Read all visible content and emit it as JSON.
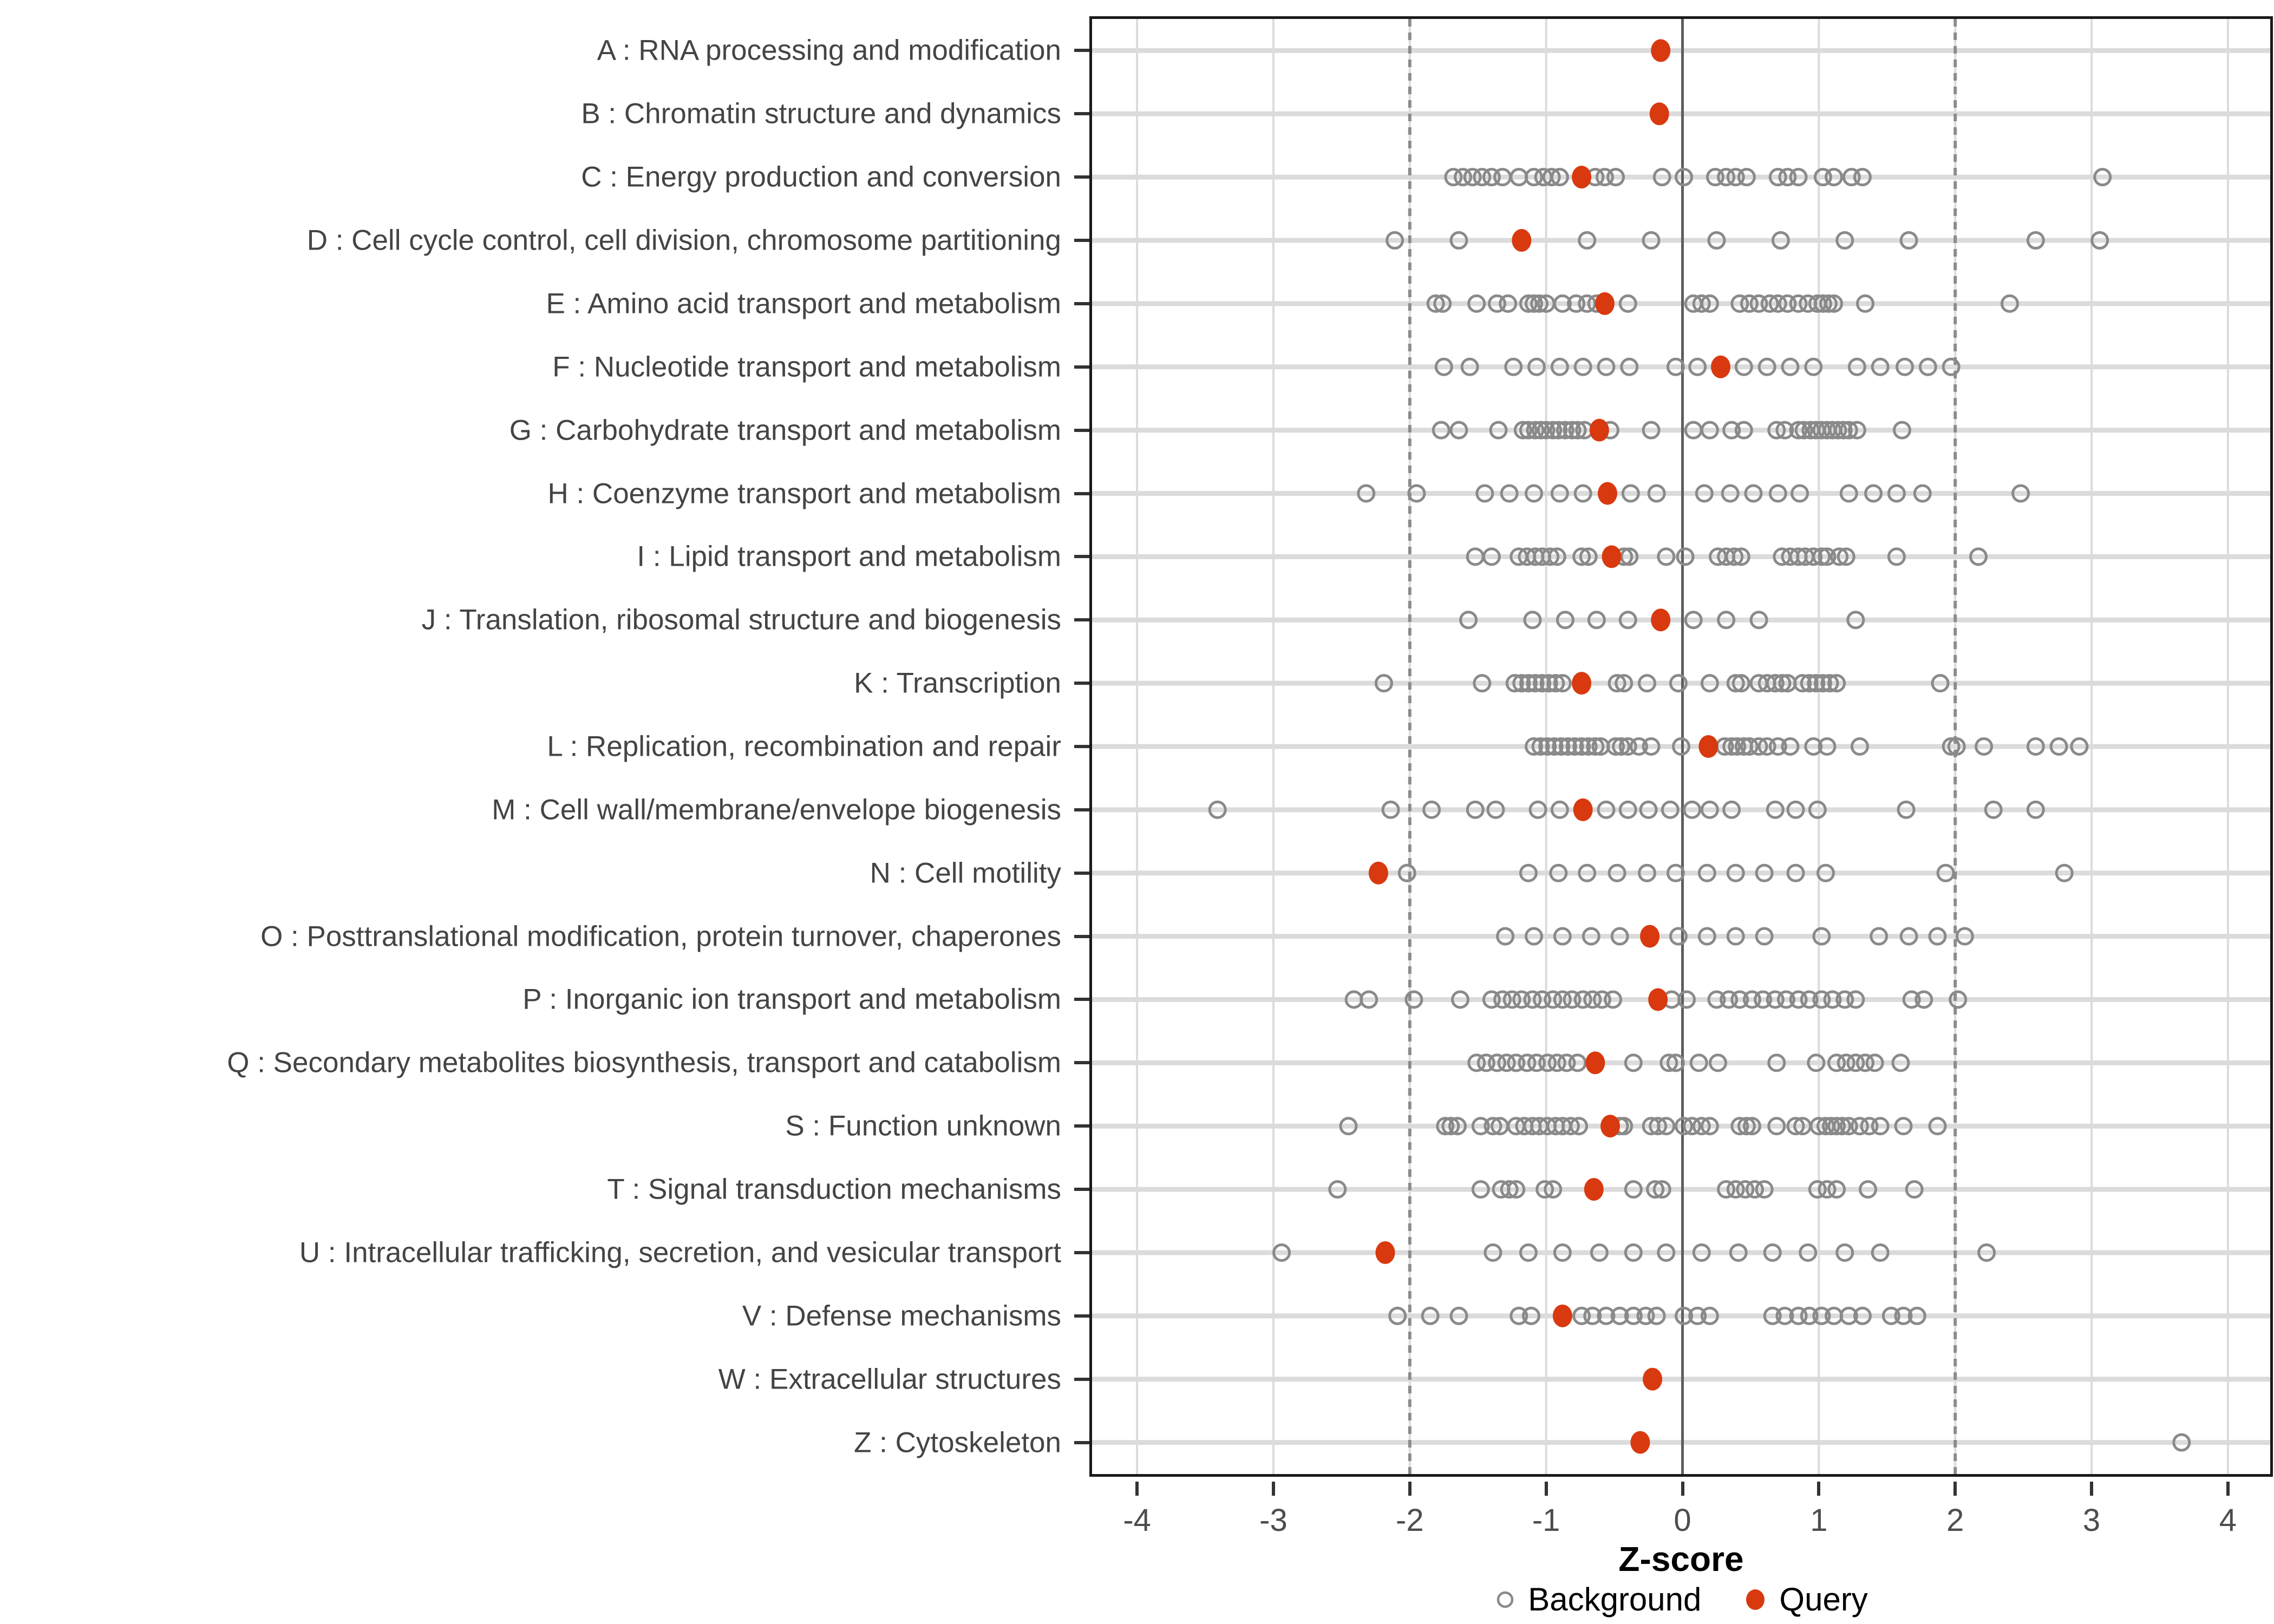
{
  "figure": {
    "background_color": "#FFFFFF",
    "x_axis": {
      "label": "Z-score",
      "ticks": [
        "-4",
        "-3",
        "-2",
        "-1",
        "0",
        "1",
        "2",
        "3",
        "4"
      ],
      "tick_values": [
        -4,
        -3,
        -2,
        -1,
        0,
        1,
        2,
        3,
        4
      ],
      "range": [
        -4.33,
        4.31
      ]
    },
    "reference_lines": {
      "zero_solid": 0,
      "dashed": [
        -2,
        2
      ]
    },
    "legend": {
      "items": [
        {
          "label": "Background",
          "marker": "open-circle",
          "color": "#8A8A8A"
        },
        {
          "label": "Query",
          "marker": "filled-circle",
          "color": "#D8390F"
        }
      ]
    },
    "colors": {
      "query": "#D8390F",
      "background_stroke": "#8A8A8A",
      "grid": "#DBDBDB",
      "dashed_line": "#8C8C8C",
      "zero_line": "#5E5E5E",
      "panel_border": "#1A1A1A",
      "category_text": "#444444",
      "tick_text": "#4D4D4D"
    }
  },
  "chart_data": {
    "type": "scatter",
    "orientation": "horizontal-strip",
    "title": "",
    "xlabel": "Z-score",
    "xlim": [
      -4.33,
      4.31
    ],
    "x_ticks": [
      -4,
      -3,
      -2,
      -1,
      0,
      1,
      2,
      3,
      4
    ],
    "grid": "major-only",
    "legend_position": "bottom-center",
    "series_names": [
      "Background",
      "Query"
    ],
    "rows": [
      {
        "code": "A",
        "label": "A : RNA processing and modification",
        "query": -0.16,
        "background": []
      },
      {
        "code": "B",
        "label": "B : Chromatin structure and dynamics",
        "query": -0.17,
        "background": []
      },
      {
        "code": "C",
        "label": "C : Energy production and conversion",
        "query": -0.74,
        "background": [
          -1.68,
          -1.61,
          -1.54,
          -1.47,
          -1.4,
          -1.32,
          -1.2,
          -1.09,
          -1.02,
          -0.96,
          -0.9,
          -0.64,
          -0.57,
          -0.49,
          -0.15,
          0.01,
          0.24,
          0.32,
          0.39,
          0.47,
          0.7,
          0.77,
          0.85,
          1.03,
          1.11,
          1.24,
          1.32,
          3.08
        ]
      },
      {
        "code": "D",
        "label": "D : Cell cycle control, cell division, chromosome partitioning",
        "query": -1.18,
        "background": [
          -2.11,
          -1.64,
          -0.7,
          -0.23,
          0.25,
          0.72,
          1.19,
          1.66,
          2.59,
          3.06
        ]
      },
      {
        "code": "E",
        "label": "E : Amino acid transport and metabolism",
        "query": -0.57,
        "background": [
          -1.81,
          -1.76,
          -1.51,
          -1.36,
          -1.28,
          -1.13,
          -1.09,
          -1.05,
          -1.0,
          -0.88,
          -0.78,
          -0.7,
          -0.63,
          -0.4,
          0.08,
          0.14,
          0.2,
          0.42,
          0.49,
          0.56,
          0.64,
          0.7,
          0.77,
          0.85,
          0.92,
          0.99,
          1.03,
          1.07,
          1.11,
          1.34,
          2.4
        ]
      },
      {
        "code": "F",
        "label": "F : Nucleotide transport and metabolism",
        "query": 0.28,
        "background": [
          -1.75,
          -1.56,
          -1.24,
          -1.07,
          -0.9,
          -0.73,
          -0.56,
          -0.39,
          -0.05,
          0.11,
          0.45,
          0.62,
          0.79,
          0.96,
          1.28,
          1.45,
          1.63,
          1.8,
          1.97
        ]
      },
      {
        "code": "G",
        "label": "G : Carbohydrate transport and metabolism",
        "query": -0.61,
        "background": [
          -1.77,
          -1.64,
          -1.35,
          -1.17,
          -1.13,
          -1.08,
          -1.04,
          -1.0,
          -0.95,
          -0.91,
          -0.86,
          -0.81,
          -0.77,
          -0.72,
          -0.53,
          -0.23,
          0.08,
          0.2,
          0.36,
          0.45,
          0.69,
          0.75,
          0.85,
          0.89,
          0.94,
          0.98,
          1.02,
          1.06,
          1.1,
          1.14,
          1.18,
          1.22,
          1.28,
          1.61
        ]
      },
      {
        "code": "H",
        "label": "H : Coenzyme transport and metabolism",
        "query": -0.55,
        "background": [
          -2.32,
          -1.95,
          -1.45,
          -1.27,
          -1.09,
          -0.9,
          -0.73,
          -0.38,
          -0.19,
          0.16,
          0.35,
          0.52,
          0.7,
          0.86,
          1.22,
          1.4,
          1.57,
          1.76,
          2.48
        ]
      },
      {
        "code": "I",
        "label": "I : Lipid transport and metabolism",
        "query": -0.52,
        "background": [
          -1.52,
          -1.4,
          -1.2,
          -1.14,
          -1.08,
          -1.03,
          -0.97,
          -0.92,
          -0.74,
          -0.69,
          -0.43,
          -0.39,
          -0.12,
          0.02,
          0.26,
          0.32,
          0.38,
          0.43,
          0.73,
          0.79,
          0.85,
          0.9,
          0.96,
          1.02,
          1.06,
          1.15,
          1.2,
          1.57,
          2.17
        ]
      },
      {
        "code": "J",
        "label": "J : Translation, ribosomal structure and biogenesis",
        "query": -0.16,
        "background": [
          -1.57,
          -1.1,
          -0.86,
          -0.63,
          -0.4,
          0.08,
          0.32,
          0.56,
          1.27
        ]
      },
      {
        "code": "K",
        "label": "K : Transcription",
        "query": -0.74,
        "background": [
          -2.19,
          -1.47,
          -1.23,
          -1.18,
          -1.13,
          -1.08,
          -1.03,
          -0.98,
          -0.93,
          -0.88,
          -0.48,
          -0.43,
          -0.26,
          -0.03,
          0.2,
          0.39,
          0.43,
          0.56,
          0.62,
          0.68,
          0.73,
          0.77,
          0.88,
          0.93,
          0.98,
          1.03,
          1.08,
          1.13,
          1.89
        ]
      },
      {
        "code": "L",
        "label": "L : Replication, recombination and repair",
        "query": 0.19,
        "background": [
          -1.09,
          -1.04,
          -0.99,
          -0.94,
          -0.89,
          -0.84,
          -0.79,
          -0.74,
          -0.69,
          -0.64,
          -0.6,
          -0.49,
          -0.45,
          -0.4,
          -0.32,
          -0.23,
          -0.01,
          0.31,
          0.36,
          0.4,
          0.45,
          0.49,
          0.56,
          0.62,
          0.7,
          0.79,
          0.96,
          1.06,
          1.3,
          1.97,
          2.01,
          2.21,
          2.59,
          2.76,
          2.91
        ]
      },
      {
        "code": "M",
        "label": "M : Cell wall/membrane/envelope biogenesis",
        "query": -0.73,
        "background": [
          -3.41,
          -2.14,
          -1.84,
          -1.52,
          -1.37,
          -1.06,
          -0.9,
          -0.56,
          -0.4,
          -0.25,
          -0.09,
          0.07,
          0.2,
          0.36,
          0.68,
          0.83,
          0.99,
          1.64,
          2.28,
          2.59
        ]
      },
      {
        "code": "N",
        "label": "N : Cell motility",
        "query": -2.23,
        "background": [
          -2.02,
          -1.13,
          -0.91,
          -0.7,
          -0.48,
          -0.26,
          -0.05,
          0.18,
          0.39,
          0.6,
          0.83,
          1.05,
          1.93,
          2.8
        ]
      },
      {
        "code": "O",
        "label": "O : Posttranslational modification, protein turnover, chaperones",
        "query": -0.24,
        "background": [
          -1.3,
          -1.09,
          -0.88,
          -0.67,
          -0.46,
          -0.03,
          0.18,
          0.39,
          0.6,
          1.02,
          1.44,
          1.66,
          1.87,
          2.07
        ]
      },
      {
        "code": "P",
        "label": "P : Inorganic ion transport and metabolism",
        "query": -0.18,
        "background": [
          -2.41,
          -2.3,
          -1.97,
          -1.63,
          -1.4,
          -1.32,
          -1.25,
          -1.18,
          -1.1,
          -1.03,
          -0.95,
          -0.88,
          -0.81,
          -0.73,
          -0.66,
          -0.59,
          -0.51,
          -0.08,
          0.03,
          0.25,
          0.34,
          0.42,
          0.51,
          0.59,
          0.68,
          0.76,
          0.85,
          0.93,
          1.02,
          1.1,
          1.19,
          1.27,
          1.68,
          1.77,
          2.02
        ]
      },
      {
        "code": "Q",
        "label": "Q : Secondary metabolites biosynthesis, transport and catabolism",
        "query": -0.64,
        "background": [
          -1.51,
          -1.44,
          -1.36,
          -1.29,
          -1.22,
          -1.14,
          -1.07,
          -0.99,
          -0.92,
          -0.85,
          -0.77,
          -0.36,
          -0.1,
          -0.05,
          0.12,
          0.26,
          0.69,
          0.98,
          1.13,
          1.2,
          1.27,
          1.34,
          1.41,
          1.6
        ]
      },
      {
        "code": "S",
        "label": "S : Function unknown",
        "query": -0.53,
        "background": [
          -2.45,
          -1.74,
          -1.7,
          -1.65,
          -1.48,
          -1.39,
          -1.34,
          -1.22,
          -1.16,
          -1.1,
          -1.05,
          -0.99,
          -0.93,
          -0.88,
          -0.82,
          -0.76,
          -0.46,
          -0.43,
          -0.23,
          -0.18,
          -0.12,
          0.01,
          0.07,
          0.14,
          0.2,
          0.42,
          0.47,
          0.51,
          0.69,
          0.83,
          0.88,
          1.0,
          1.05,
          1.09,
          1.13,
          1.17,
          1.22,
          1.3,
          1.37,
          1.45,
          1.62,
          1.87
        ]
      },
      {
        "code": "T",
        "label": "T : Signal transduction mechanisms",
        "query": -0.65,
        "background": [
          -2.53,
          -1.48,
          -1.33,
          -1.27,
          -1.22,
          -1.01,
          -0.95,
          -0.36,
          -0.2,
          -0.15,
          0.32,
          0.39,
          0.46,
          0.53,
          0.6,
          0.99,
          1.06,
          1.13,
          1.36,
          1.7
        ]
      },
      {
        "code": "U",
        "label": "U : Intracellular trafficking, secretion, and vesicular transport",
        "query": -2.18,
        "background": [
          -2.94,
          -1.39,
          -1.13,
          -0.88,
          -0.61,
          -0.36,
          -0.12,
          0.14,
          0.41,
          0.66,
          0.92,
          1.19,
          1.45,
          2.23
        ]
      },
      {
        "code": "V",
        "label": "V : Defense mechanisms",
        "query": -0.88,
        "background": [
          -2.09,
          -1.85,
          -1.64,
          -1.2,
          -1.11,
          -0.74,
          -0.66,
          -0.56,
          -0.46,
          -0.36,
          -0.27,
          -0.19,
          0.01,
          0.11,
          0.2,
          0.66,
          0.75,
          0.85,
          0.93,
          1.02,
          1.11,
          1.22,
          1.32,
          1.53,
          1.62,
          1.72
        ]
      },
      {
        "code": "W",
        "label": "W : Extracellular structures",
        "query": -0.22,
        "background": []
      },
      {
        "code": "Z",
        "label": "Z : Cytoskeleton",
        "query": -0.31,
        "background": [
          3.66
        ]
      }
    ]
  }
}
